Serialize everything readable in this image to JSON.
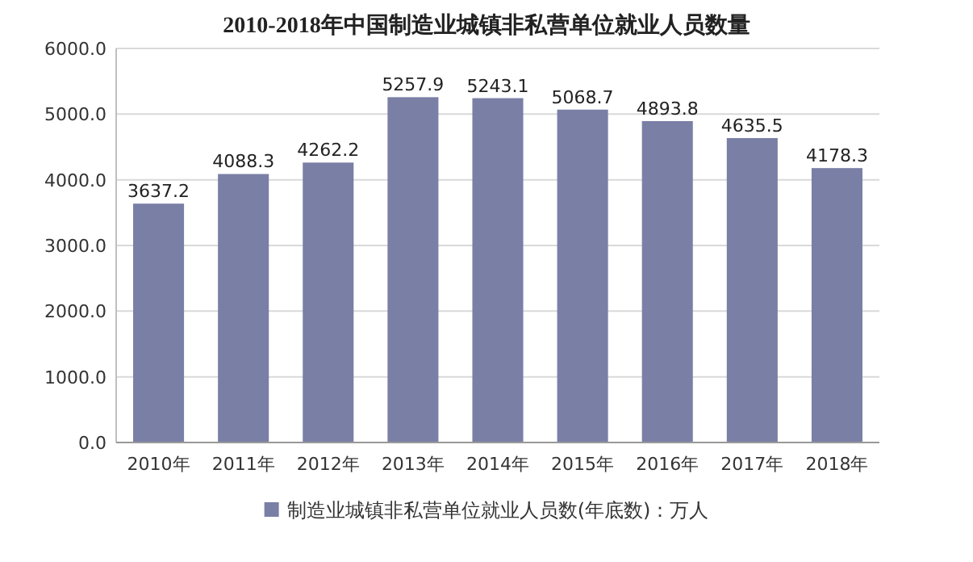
{
  "chart_data": {
    "type": "bar",
    "title": "2010-2018年中国制造业城镇非私营单位就业人员数量",
    "categories": [
      "2010年",
      "2011年",
      "2012年",
      "2013年",
      "2014年",
      "2015年",
      "2016年",
      "2017年",
      "2018年"
    ],
    "series": [
      {
        "name": "制造业城镇非私营单位就业人员数(年底数)：万人",
        "color": "#7a7fa6",
        "values": [
          3637.2,
          4088.3,
          4262.2,
          5257.9,
          5243.1,
          5068.7,
          4893.8,
          4635.5,
          4178.3
        ]
      }
    ],
    "ylim": [
      0,
      6000
    ],
    "yticks": [
      {
        "value": 0,
        "label": "0.0"
      },
      {
        "value": 1000,
        "label": "1000.0"
      },
      {
        "value": 2000,
        "label": "2000.0"
      },
      {
        "value": 3000,
        "label": "3000.0"
      },
      {
        "value": 4000,
        "label": "4000.0"
      },
      {
        "value": 5000,
        "label": "5000.0"
      },
      {
        "value": 6000,
        "label": "6000.0"
      }
    ],
    "grid": "y",
    "legend": "bottom",
    "data_labels": true
  }
}
